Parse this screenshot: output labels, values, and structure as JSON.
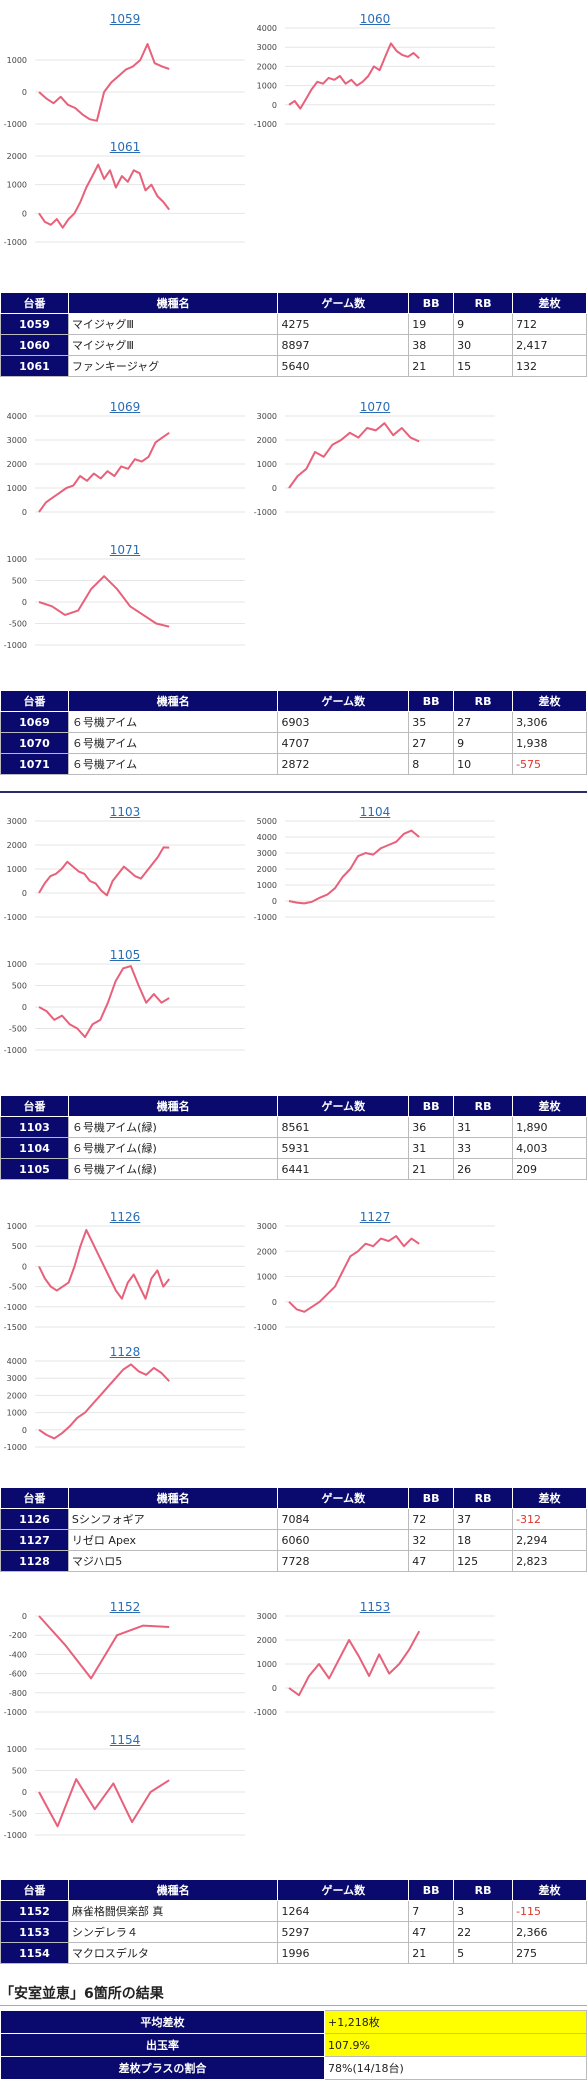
{
  "charts": [
    {
      "title": "1059",
      "yticks": [
        "1000",
        "0",
        "-1000"
      ],
      "ymin": -1000,
      "ymax": 2000,
      "series": [
        0,
        -200,
        -350,
        -150,
        -400,
        -500,
        -700,
        -850,
        -900,
        0,
        300,
        500,
        700,
        800,
        1000,
        1500,
        900,
        800,
        720
      ]
    },
    {
      "title": "1060",
      "yticks": [
        "4000",
        "3000",
        "2000",
        "1000",
        "0",
        "-1000"
      ],
      "ymin": -1000,
      "ymax": 4000,
      "series": [
        0,
        200,
        -200,
        300,
        800,
        1200,
        1100,
        1400,
        1300,
        1500,
        1100,
        1300,
        1000,
        1200,
        1500,
        2000,
        1800,
        2500,
        3200,
        2800,
        2600,
        2500,
        2700,
        2420
      ]
    },
    {
      "title": "1061",
      "yticks": [
        "2000",
        "1000",
        "0",
        "-1000"
      ],
      "ymin": -1000,
      "ymax": 2000,
      "series": [
        0,
        -300,
        -400,
        -200,
        -500,
        -200,
        0,
        400,
        900,
        1300,
        1700,
        1200,
        1500,
        900,
        1300,
        1100,
        1500,
        1400,
        800,
        1000,
        600,
        400,
        130
      ]
    },
    {
      "title": "1069",
      "yticks": [
        "4000",
        "3000",
        "2000",
        "1000",
        "0"
      ],
      "ymin": 0,
      "ymax": 4000,
      "series": [
        0,
        400,
        600,
        800,
        1000,
        1100,
        1500,
        1300,
        1600,
        1400,
        1700,
        1500,
        1900,
        1800,
        2200,
        2100,
        2300,
        2900,
        3100,
        3300
      ]
    },
    {
      "title": "1070",
      "yticks": [
        "3000",
        "2000",
        "1000",
        "0",
        "-1000"
      ],
      "ymin": -1000,
      "ymax": 3000,
      "series": [
        0,
        500,
        800,
        1500,
        1300,
        1800,
        2000,
        2300,
        2100,
        2500,
        2400,
        2700,
        2200,
        2500,
        2100,
        1940
      ]
    },
    {
      "title": "1071",
      "yticks": [
        "1000",
        "500",
        "0",
        "-500",
        "-1000"
      ],
      "ymin": -1000,
      "ymax": 1000,
      "series": [
        0,
        -100,
        -300,
        -200,
        300,
        600,
        300,
        -100,
        -300,
        -500,
        -575
      ]
    },
    {
      "title": "1103",
      "yticks": [
        "3000",
        "2000",
        "1000",
        "0",
        "-1000"
      ],
      "ymin": -1000,
      "ymax": 3000,
      "series": [
        0,
        400,
        700,
        800,
        1000,
        1300,
        1100,
        900,
        800,
        500,
        400,
        100,
        -100,
        500,
        800,
        1100,
        900,
        700,
        600,
        900,
        1200,
        1500,
        1900,
        1890
      ]
    },
    {
      "title": "1104",
      "yticks": [
        "5000",
        "4000",
        "3000",
        "2000",
        "1000",
        "0",
        "-1000"
      ],
      "ymin": -1000,
      "ymax": 5000,
      "series": [
        0,
        -100,
        -150,
        -50,
        200,
        400,
        800,
        1500,
        2000,
        2800,
        3000,
        2900,
        3300,
        3500,
        3700,
        4200,
        4400,
        4000
      ]
    },
    {
      "title": "1105",
      "yticks": [
        "1000",
        "500",
        "0",
        "-500",
        "-1000"
      ],
      "ymin": -1000,
      "ymax": 1000,
      "series": [
        0,
        -100,
        -300,
        -200,
        -400,
        -500,
        -700,
        -400,
        -300,
        100,
        600,
        900,
        950,
        500,
        100,
        300,
        100,
        209
      ]
    },
    {
      "title": "1126",
      "yticks": [
        "1000",
        "500",
        "0",
        "-500",
        "-1000",
        "-1500"
      ],
      "ymin": -1500,
      "ymax": 1000,
      "series": [
        0,
        -300,
        -500,
        -600,
        -500,
        -400,
        0,
        500,
        900,
        600,
        300,
        0,
        -300,
        -600,
        -800,
        -400,
        -200,
        -500,
        -800,
        -300,
        -100,
        -500,
        -312
      ]
    },
    {
      "title": "1127",
      "yticks": [
        "3000",
        "2000",
        "1000",
        "0",
        "-1000"
      ],
      "ymin": -1000,
      "ymax": 3000,
      "series": [
        0,
        -300,
        -400,
        -200,
        0,
        300,
        600,
        1200,
        1800,
        2000,
        2300,
        2200,
        2500,
        2400,
        2600,
        2200,
        2500,
        2294
      ]
    },
    {
      "title": "1128",
      "yticks": [
        "4000",
        "3000",
        "2000",
        "1000",
        "0",
        "-1000"
      ],
      "ymin": -1000,
      "ymax": 4000,
      "series": [
        0,
        -300,
        -500,
        -200,
        200,
        700,
        1000,
        1500,
        2000,
        2500,
        3000,
        3500,
        3800,
        3400,
        3200,
        3600,
        3300,
        2823
      ]
    },
    {
      "title": "1152",
      "yticks": [
        "0",
        "-200",
        "-400",
        "-600",
        "-800",
        "-1000"
      ],
      "ymin": -1000,
      "ymax": 0,
      "series": [
        0,
        -300,
        -650,
        -200,
        -100,
        -115
      ]
    },
    {
      "title": "1153",
      "yticks": [
        "3000",
        "2000",
        "1000",
        "0",
        "-1000"
      ],
      "ymin": -1000,
      "ymax": 3000,
      "series": [
        0,
        -300,
        500,
        1000,
        400,
        1200,
        2000,
        1300,
        500,
        1400,
        600,
        1000,
        1600,
        2366
      ]
    },
    {
      "title": "1154",
      "yticks": [
        "1000",
        "500",
        "0",
        "-500",
        "-1000"
      ],
      "ymin": -1000,
      "ymax": 1000,
      "series": [
        0,
        -800,
        300,
        -400,
        200,
        -700,
        0,
        275
      ]
    }
  ],
  "table_headers": [
    "台番",
    "機種名",
    "ゲーム数",
    "BB",
    "RB",
    "差枚"
  ],
  "tables": [
    {
      "rows": [
        [
          "1059",
          "マイジャグⅢ",
          "4275",
          "19",
          "9",
          "712"
        ],
        [
          "1060",
          "マイジャグⅢ",
          "8897",
          "38",
          "30",
          "2,417"
        ],
        [
          "1061",
          "ファンキージャグ",
          "5640",
          "21",
          "15",
          "132"
        ]
      ]
    },
    {
      "rows": [
        [
          "1069",
          "６号機アイム",
          "6903",
          "35",
          "27",
          "3,306"
        ],
        [
          "1070",
          "６号機アイム",
          "4707",
          "27",
          "9",
          "1,938"
        ],
        [
          "1071",
          "６号機アイム",
          "2872",
          "8",
          "10",
          "-575"
        ]
      ]
    },
    {
      "rows": [
        [
          "1103",
          "６号機アイム(緑)",
          "8561",
          "36",
          "31",
          "1,890"
        ],
        [
          "1104",
          "６号機アイム(緑)",
          "5931",
          "31",
          "33",
          "4,003"
        ],
        [
          "1105",
          "６号機アイム(緑)",
          "6441",
          "21",
          "26",
          "209"
        ]
      ]
    },
    {
      "rows": [
        [
          "1126",
          "Sシンフォギア",
          "7084",
          "72",
          "37",
          "-312"
        ],
        [
          "1127",
          "リゼロ Apex",
          "6060",
          "32",
          "18",
          "2,294"
        ],
        [
          "1128",
          "マジハロ5",
          "7728",
          "47",
          "125",
          "2,823"
        ]
      ]
    },
    {
      "rows": [
        [
          "1152",
          "麻雀格闘倶楽部 真",
          "1264",
          "7",
          "3",
          "-115"
        ],
        [
          "1153",
          "シンデレラ４",
          "5297",
          "47",
          "22",
          "2,366"
        ],
        [
          "1154",
          "マクロスデルタ",
          "1996",
          "21",
          "5",
          "275"
        ]
      ]
    }
  ],
  "colors": {
    "line": "#e8607a",
    "header_bg": "#0a0a6e",
    "negative": "#e0362c",
    "highlight": "#ffff00"
  },
  "result": {
    "title": "「安室並恵」6箇所の結果",
    "rows": [
      {
        "label": "平均差枚",
        "value": "+1,218枚"
      },
      {
        "label": "出玉率",
        "value": "107.9%"
      },
      {
        "label": "差枚プラスの割合",
        "value": "78%(14/18台)"
      }
    ]
  }
}
